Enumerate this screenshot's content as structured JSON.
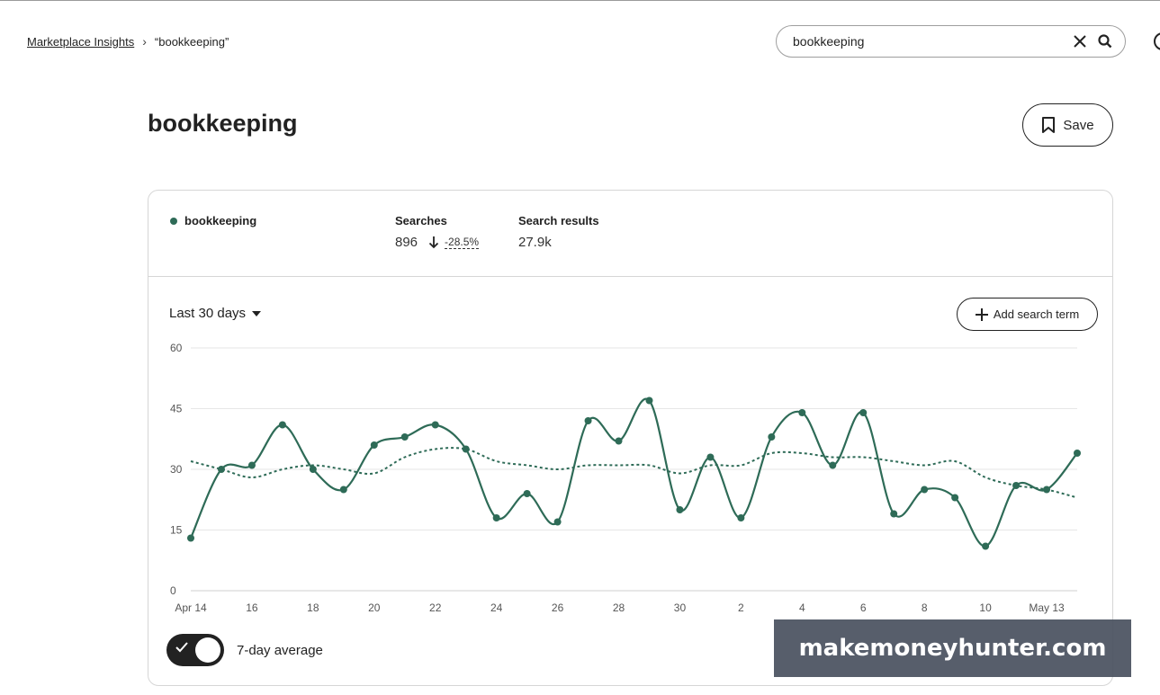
{
  "breadcrumb": {
    "root": "Marketplace Insights",
    "current": "“bookkeeping”"
  },
  "search": {
    "value": "bookkeeping",
    "clear_icon": "close-icon",
    "search_icon": "search-icon"
  },
  "page": {
    "title": "bookkeeping",
    "save_label": "Save"
  },
  "stats": {
    "term": "bookkeeping",
    "searches_label": "Searches",
    "searches_value": "896",
    "searches_change": "-28.5%",
    "results_label": "Search results",
    "results_value": "27.9k"
  },
  "controls": {
    "period": "Last 30 days",
    "add_term": "Add search term",
    "toggle_label": "7-day average",
    "toggle_on": true
  },
  "colors": {
    "series": "#2e6b57",
    "text": "#222222",
    "watermark_bg": "#4a5260"
  },
  "chart_data": {
    "type": "line",
    "ylim": [
      0,
      60
    ],
    "yticks": [
      "0",
      "15",
      "30",
      "45",
      "60"
    ],
    "xtick_labels": [
      "Apr 14",
      "16",
      "18",
      "20",
      "22",
      "24",
      "26",
      "28",
      "30",
      "2",
      "4",
      "6",
      "8",
      "10",
      "May 13"
    ],
    "x": [
      "Apr 14",
      "Apr 15",
      "Apr 16",
      "Apr 17",
      "Apr 18",
      "Apr 19",
      "Apr 20",
      "Apr 21",
      "Apr 22",
      "Apr 23",
      "Apr 24",
      "Apr 25",
      "Apr 26",
      "Apr 27",
      "Apr 28",
      "Apr 29",
      "Apr 30",
      "May 1",
      "May 2",
      "May 3",
      "May 4",
      "May 5",
      "May 6",
      "May 7",
      "May 8",
      "May 9",
      "May 10",
      "May 11",
      "May 12",
      "May 13"
    ],
    "series": [
      {
        "values": [
          13,
          30,
          31,
          41,
          30,
          25,
          36,
          38,
          41,
          35,
          18,
          24,
          17,
          42,
          37,
          47,
          20,
          33,
          18,
          38,
          44,
          31,
          44,
          19,
          25,
          23,
          11,
          26,
          25,
          34
        ]
      },
      {
        "style": "dotted",
        "values": [
          32,
          30,
          28,
          30,
          31,
          30,
          29,
          33,
          35,
          35,
          32,
          31,
          30,
          31,
          31,
          31,
          29,
          31,
          31,
          34,
          34,
          33,
          33,
          32,
          31,
          32,
          28,
          26,
          25,
          23
        ]
      }
    ]
  },
  "watermark": "makemoneyhunter.com"
}
